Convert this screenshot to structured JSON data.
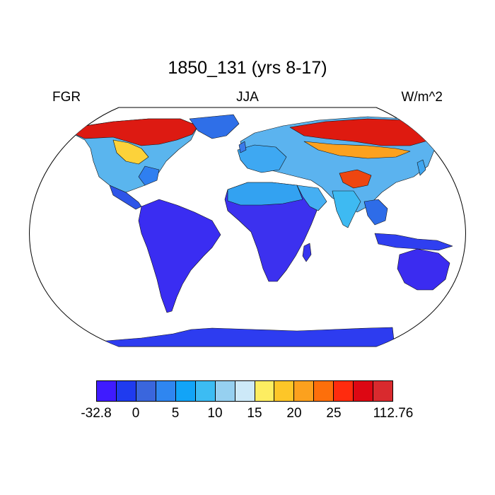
{
  "title": "1850_131 (yrs 8-17)",
  "left_label": "FGR",
  "center_label": "JJA",
  "right_label": "W/m^2",
  "colorbar": {
    "colors": [
      "#3f1bff",
      "#1f3bef",
      "#3a66dd",
      "#2f86f0",
      "#12a4f7",
      "#3cbcf3",
      "#96d0f0",
      "#cde9f8",
      "#fded61",
      "#fdc628",
      "#fca11e",
      "#fd6f0b",
      "#ff2b0e",
      "#dd0713",
      "#d92a2e"
    ],
    "labels": [
      "-32.8",
      "0",
      "5",
      "10",
      "15",
      "20",
      "25",
      "112.76"
    ],
    "label_positions": [
      0,
      2,
      4,
      6,
      8,
      10,
      12,
      15
    ]
  },
  "chart_data": {
    "type": "map",
    "projection": "Robinson",
    "variable": "FGR",
    "season": "JJA",
    "units": "W/m^2",
    "value_range": [
      -32.8,
      112.76
    ],
    "levels": [
      0,
      2.5,
      5,
      7.5,
      10,
      12.5,
      15,
      17.5,
      20,
      22.5,
      25,
      27.5,
      30,
      32.5
    ]
  }
}
